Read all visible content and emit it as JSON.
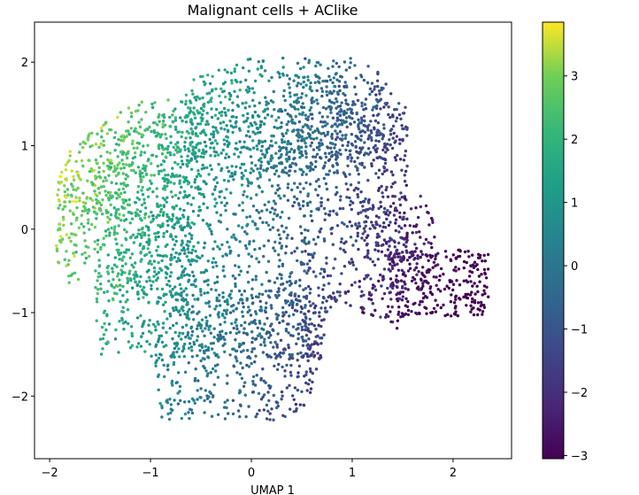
{
  "chart_data": {
    "type": "scatter",
    "title": "Malignant cells + AClike",
    "xlabel": "UMAP 1",
    "ylabel": "",
    "xlim": [
      -2.15,
      2.58
    ],
    "ylim": [
      -2.75,
      2.48
    ],
    "xticks": [
      -2,
      -1,
      0,
      1,
      2
    ],
    "yticks": [
      -2,
      -1,
      0,
      1,
      2
    ],
    "xtick_labels": [
      "−2",
      "−1",
      "0",
      "1",
      "2"
    ],
    "ytick_labels": [
      "−2",
      "−1",
      "0",
      "1",
      "2"
    ],
    "grid": false,
    "colorbar": {
      "colormap": "viridis",
      "range": [
        -3.05,
        3.85
      ],
      "ticks": [
        -3,
        -2,
        -1,
        0,
        1,
        2,
        3
      ],
      "tick_labels": [
        "−3",
        "−2",
        "−1",
        "0",
        "1",
        "2",
        "3"
      ]
    },
    "color_field": {
      "type": "linear",
      "coef_x": -1.55,
      "coef_y": 0.45,
      "offset": 0.15
    },
    "regions": [
      {
        "cx": 0.0,
        "cy": 0.0,
        "rx": 1.55,
        "ry": 1.55,
        "n": 1800
      },
      {
        "cx": -1.2,
        "cy": 0.3,
        "rx": 0.75,
        "ry": 1.0,
        "n": 500
      },
      {
        "cx": 0.0,
        "cy": -1.5,
        "rx": 0.95,
        "ry": 0.8,
        "n": 500
      },
      {
        "cx": 0.35,
        "cy": 1.35,
        "rx": 1.0,
        "ry": 0.7,
        "n": 450
      },
      {
        "cx": 1.85,
        "cy": -0.65,
        "rx": 0.5,
        "ry": 0.4,
        "n": 280
      },
      {
        "cx": 1.45,
        "cy": 0.0,
        "rx": 0.4,
        "ry": 0.4,
        "n": 130
      },
      {
        "cx": 0.9,
        "cy": 1.35,
        "rx": 0.55,
        "ry": 0.5,
        "n": 180
      },
      {
        "cx": -1.55,
        "cy": 0.5,
        "rx": 0.35,
        "ry": 0.35,
        "n": 80
      }
    ],
    "boundary": [
      [
        -1.95,
        0.5
      ],
      [
        -1.8,
        0.95
      ],
      [
        -1.5,
        1.3
      ],
      [
        -1.1,
        1.55
      ],
      [
        -0.6,
        1.8
      ],
      [
        0.0,
        2.05
      ],
      [
        0.5,
        2.15
      ],
      [
        0.85,
        2.2
      ],
      [
        1.2,
        1.95
      ],
      [
        1.5,
        1.6
      ],
      [
        1.6,
        1.1
      ],
      [
        1.65,
        0.7
      ],
      [
        1.75,
        0.35
      ],
      [
        2.05,
        0.15
      ],
      [
        2.3,
        -0.1
      ],
      [
        2.4,
        -0.5
      ],
      [
        2.35,
        -1.0
      ],
      [
        2.05,
        -1.4
      ],
      [
        1.7,
        -1.35
      ],
      [
        1.3,
        -1.1
      ],
      [
        1.0,
        -0.95
      ],
      [
        0.85,
        -0.85
      ],
      [
        0.75,
        -1.0
      ],
      [
        0.7,
        -1.5
      ],
      [
        0.55,
        -2.1
      ],
      [
        0.25,
        -2.35
      ],
      [
        0.0,
        -2.45
      ],
      [
        -0.4,
        -2.5
      ],
      [
        -0.8,
        -2.35
      ],
      [
        -1.1,
        -2.1
      ],
      [
        -1.35,
        -1.8
      ],
      [
        -1.55,
        -1.4
      ],
      [
        -1.75,
        -0.9
      ],
      [
        -1.9,
        -0.5
      ],
      [
        -2.0,
        0.0
      ]
    ]
  }
}
